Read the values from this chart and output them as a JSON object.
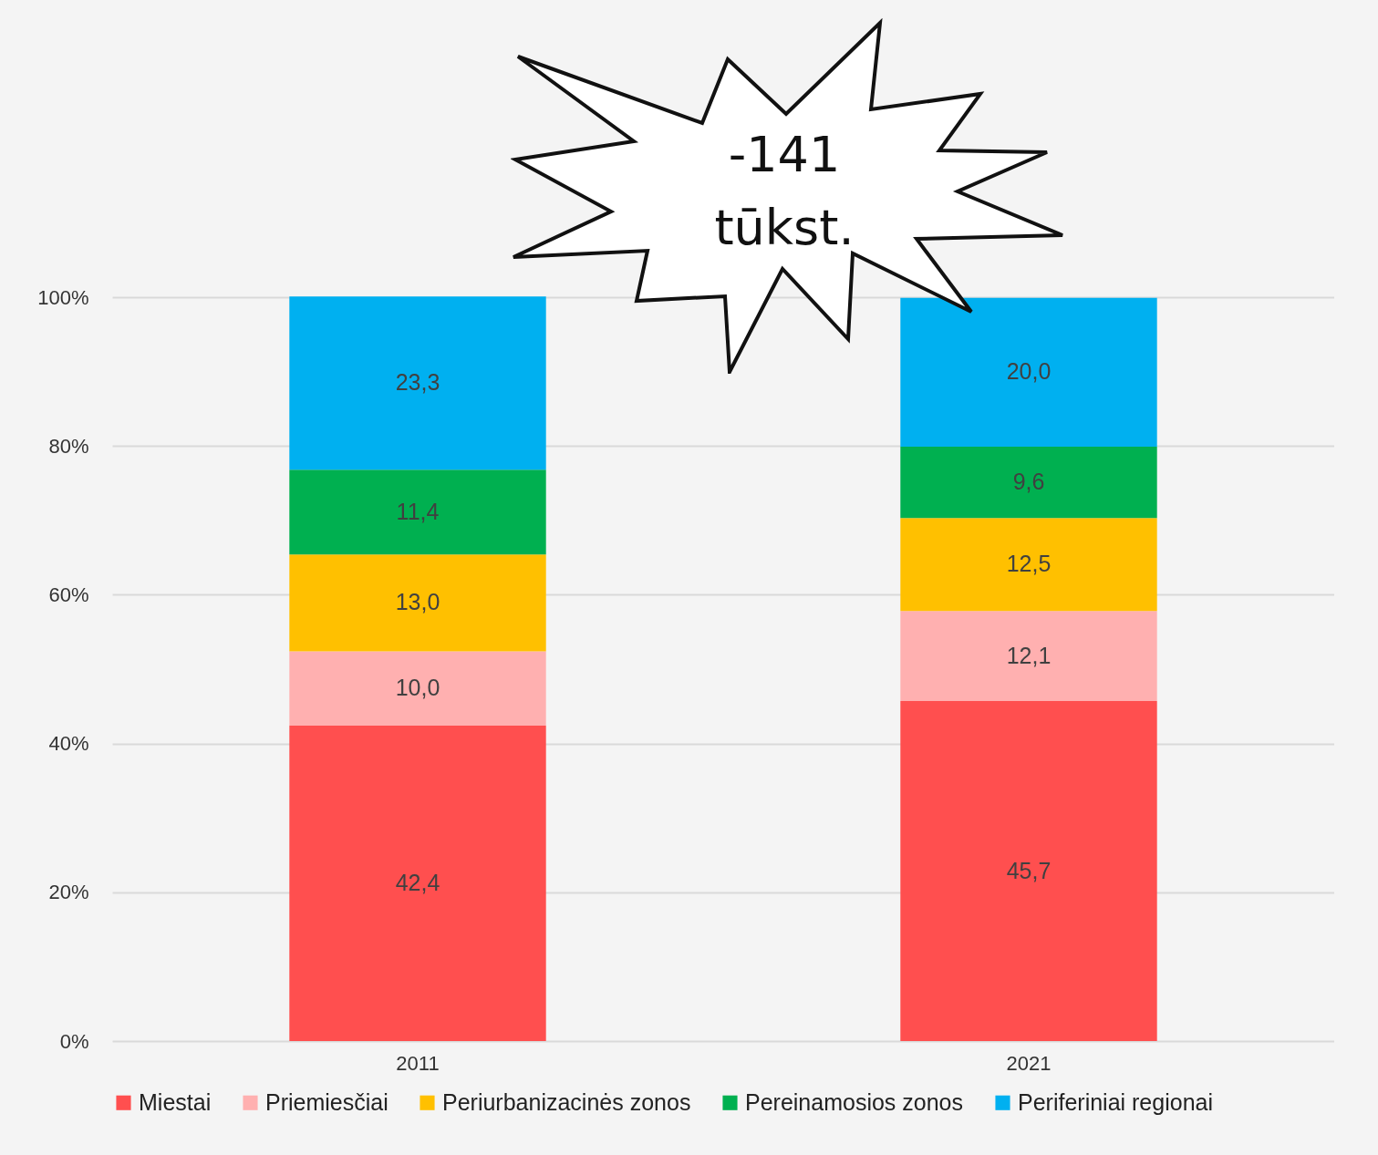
{
  "chart_data": {
    "type": "bar",
    "stacked": true,
    "categories": [
      "2011",
      "2021"
    ],
    "series": [
      {
        "name": "Miestai",
        "color": "#ff4f4f",
        "values": [
          42.4,
          45.7
        ],
        "value_labels": [
          "42,4",
          "45,7"
        ]
      },
      {
        "name": "Priemiesčiai",
        "color": "#ffb0b0",
        "values": [
          10.0,
          12.1
        ],
        "value_labels": [
          "10,0",
          "12,1"
        ]
      },
      {
        "name": "Periurbanizacinės zonos",
        "color": "#ffc000",
        "values": [
          13.0,
          12.5
        ],
        "value_labels": [
          "13,0",
          "12,5"
        ]
      },
      {
        "name": "Pereinamosios zonos",
        "color": "#00b050",
        "values": [
          11.4,
          9.6
        ],
        "value_labels": [
          "11,4",
          "9,6"
        ]
      },
      {
        "name": "Periferiniai regionai",
        "color": "#00b0f0",
        "values": [
          23.3,
          20.0
        ],
        "value_labels": [
          "23,3",
          "20,0"
        ]
      }
    ],
    "ylim": [
      0,
      100
    ],
    "yticks": [
      {
        "value": 0,
        "label": "0%"
      },
      {
        "value": 20,
        "label": "20%"
      },
      {
        "value": 40,
        "label": "40%"
      },
      {
        "value": 60,
        "label": "60%"
      },
      {
        "value": 80,
        "label": "80%"
      },
      {
        "value": 100,
        "label": "100%"
      }
    ],
    "grid": "y",
    "legend": "bottom",
    "annotations": [
      "-141 tūkst."
    ]
  }
}
